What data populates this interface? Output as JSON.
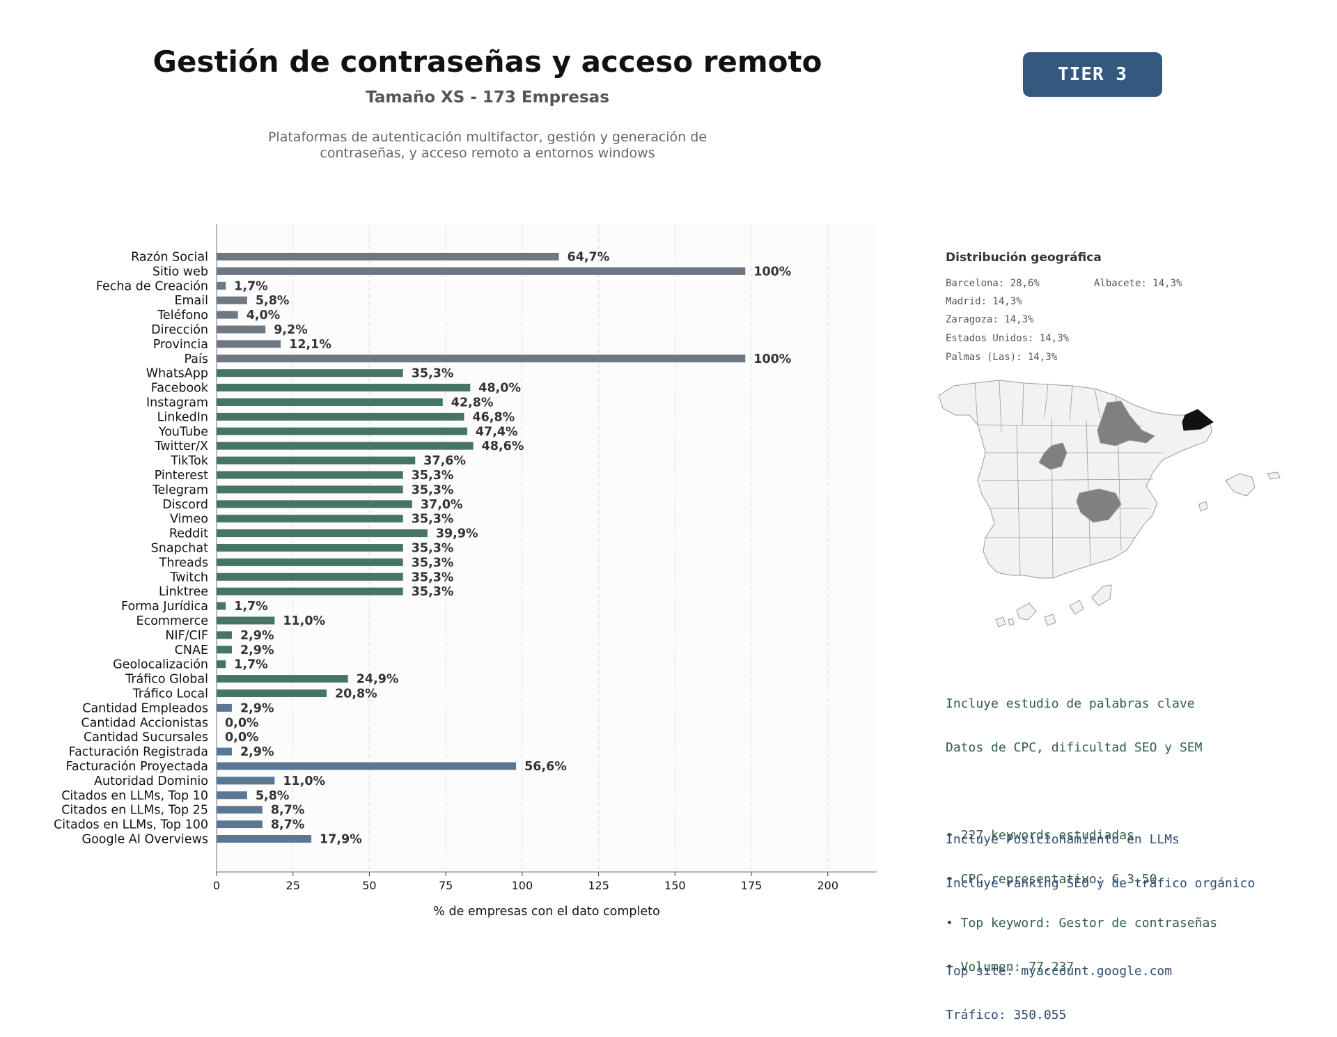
{
  "header": {
    "title": "Gestión de contraseñas y acceso remoto",
    "subtitle": "Tamaño XS - 173 Empresas",
    "description_line1": "Plataformas de autenticación multifactor, gestión y generación de",
    "description_line2": "contraseñas, y acceso remoto a entornos windows",
    "tier": "TIER 3"
  },
  "chart_data": {
    "type": "bar",
    "orientation": "horizontal",
    "xlabel": "% de empresas con el dato completo",
    "xlim": [
      0,
      216
    ],
    "xticks": [
      0,
      25,
      50,
      75,
      100,
      125,
      150,
      175,
      200
    ],
    "grid": "vertical dashed",
    "categories": [
      "Razón Social",
      "Sitio web",
      "Fecha de Creación",
      "Email",
      "Teléfono",
      "Dirección",
      "Provincia",
      "País",
      "WhatsApp",
      "Facebook",
      "Instagram",
      "LinkedIn",
      "YouTube",
      "Twitter/X",
      "TikTok",
      "Pinterest",
      "Telegram",
      "Discord",
      "Vimeo",
      "Reddit",
      "Snapchat",
      "Threads",
      "Twitch",
      "Linktree",
      "Forma Jurídica",
      "Ecommerce",
      "NIF/CIF",
      "CNAE",
      "Geolocalización",
      "Tráfico Global",
      "Tráfico Local",
      "Cantidad Empleados",
      "Cantidad Accionistas",
      "Cantidad Sucursales",
      "Facturación Registrada",
      "Facturación Proyectada",
      "Autoridad Dominio",
      "Citados en LLMs, Top 10",
      "Citados en LLMs, Top 25",
      "Citados en LLMs, Top 100",
      "Google AI Overviews"
    ],
    "values": [
      112,
      173,
      3,
      10,
      7,
      16,
      21,
      173,
      61,
      83,
      74,
      81,
      82,
      84,
      65,
      61,
      61,
      64,
      61,
      69,
      61,
      61,
      61,
      61,
      3,
      19,
      5,
      5,
      3,
      43,
      36,
      5,
      0,
      0,
      5,
      98,
      19,
      10,
      15,
      15,
      31
    ],
    "labels": [
      "64,7%",
      "100%",
      "1,7%",
      "5,8%",
      "4,0%",
      "9,2%",
      "12,1%",
      "100%",
      "35,3%",
      "48,0%",
      "42,8%",
      "46,8%",
      "47,4%",
      "48,6%",
      "37,6%",
      "35,3%",
      "35,3%",
      "37,0%",
      "35,3%",
      "39,9%",
      "35,3%",
      "35,3%",
      "35,3%",
      "35,3%",
      "1,7%",
      "11,0%",
      "2,9%",
      "2,9%",
      "1,7%",
      "24,9%",
      "20,8%",
      "2,9%",
      "0,0%",
      "0,0%",
      "2,9%",
      "56,6%",
      "11,0%",
      "5,8%",
      "8,7%",
      "8,7%",
      "17,9%"
    ],
    "group_colors": {
      "basic": "#6e7883",
      "social": "#467562",
      "business": "#5a7893"
    },
    "groups": [
      "basic",
      "basic",
      "basic",
      "basic",
      "basic",
      "basic",
      "basic",
      "basic",
      "social",
      "social",
      "social",
      "social",
      "social",
      "social",
      "social",
      "social",
      "social",
      "social",
      "social",
      "social",
      "social",
      "social",
      "social",
      "social",
      "social",
      "social",
      "social",
      "social",
      "social",
      "social",
      "social",
      "business",
      "business",
      "business",
      "business",
      "business",
      "business",
      "business",
      "business",
      "business",
      "business"
    ]
  },
  "geo": {
    "title": "Distribución geográfica",
    "items": [
      "Barcelona: 28,6%",
      "Albacete: 14,3%",
      "Madrid: 14,3%",
      "Zaragoza: 14,3%",
      "Estados Unidos: 14,3%",
      "Palmas (Las): 14,3%"
    ],
    "map_colors": {
      "base": "#f2f2f2",
      "highlight": "#808080",
      "top": "#111111",
      "border": "#9a9a9a"
    }
  },
  "keywords": {
    "line1": "Incluye estudio de palabras clave",
    "line2": "Datos de CPC, dificultad SEO y SEM",
    "bullet1": "• 227 keywords estudiadas",
    "bullet2": "• CPC representativo: € 3.50",
    "bullet3": "• Top keyword: Gestor de contraseñas",
    "bullet4": "• Volumen: 77.237"
  },
  "llm": {
    "line1": "Incluye Posicionamiento en LLMs",
    "line2": "Incluye ranking SEO y de tráfico orgánico",
    "top_site": "Top site: myaccount.google.com",
    "traffic": "Tráfico: 350.055"
  }
}
